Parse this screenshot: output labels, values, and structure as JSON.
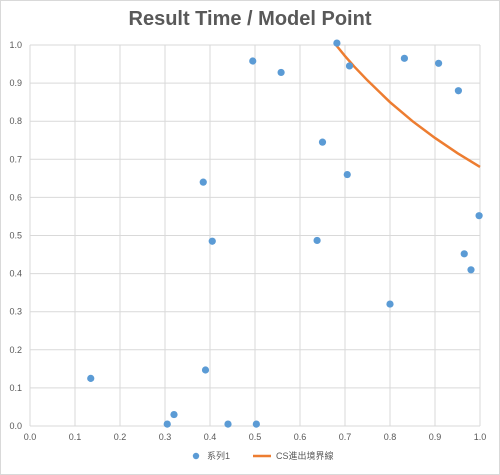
{
  "chart_data": {
    "type": "scatter",
    "title": "Result Time / Model Point",
    "xlabel": "",
    "ylabel": "",
    "xlim": [
      0,
      1
    ],
    "ylim": [
      0,
      1
    ],
    "x_ticks": [
      "0.0",
      "0.1",
      "0.2",
      "0.3",
      "0.4",
      "0.5",
      "0.6",
      "0.7",
      "0.8",
      "0.9",
      "1.0"
    ],
    "y_ticks": [
      "0.0",
      "0.1",
      "0.2",
      "0.3",
      "0.4",
      "0.5",
      "0.6",
      "0.7",
      "0.8",
      "0.9",
      "1.0"
    ],
    "grid": true,
    "legend_position": "bottom",
    "series": [
      {
        "name": "系列1",
        "kind": "scatter",
        "color": "#5B9BD5",
        "points": [
          {
            "x": 0.135,
            "y": 0.125
          },
          {
            "x": 0.305,
            "y": 0.005
          },
          {
            "x": 0.32,
            "y": 0.03
          },
          {
            "x": 0.385,
            "y": 0.64
          },
          {
            "x": 0.39,
            "y": 0.147
          },
          {
            "x": 0.405,
            "y": 0.485
          },
          {
            "x": 0.44,
            "y": 0.005
          },
          {
            "x": 0.495,
            "y": 0.958
          },
          {
            "x": 0.503,
            "y": 0.005
          },
          {
            "x": 0.558,
            "y": 0.928
          },
          {
            "x": 0.638,
            "y": 0.487
          },
          {
            "x": 0.65,
            "y": 0.745
          },
          {
            "x": 0.682,
            "y": 1.005
          },
          {
            "x": 0.705,
            "y": 0.66
          },
          {
            "x": 0.71,
            "y": 0.945
          },
          {
            "x": 0.8,
            "y": 0.32
          },
          {
            "x": 0.832,
            "y": 0.965
          },
          {
            "x": 0.908,
            "y": 0.952
          },
          {
            "x": 0.952,
            "y": 0.88
          },
          {
            "x": 0.965,
            "y": 0.452
          },
          {
            "x": 0.98,
            "y": 0.41
          },
          {
            "x": 0.998,
            "y": 0.552
          }
        ]
      },
      {
        "name": "CS進出境界線",
        "kind": "line",
        "color": "#ED7D31",
        "points": [
          {
            "x": 0.68,
            "y": 1.0
          },
          {
            "x": 0.7,
            "y": 0.971
          },
          {
            "x": 0.72,
            "y": 0.944
          },
          {
            "x": 0.75,
            "y": 0.907
          },
          {
            "x": 0.8,
            "y": 0.85
          },
          {
            "x": 0.85,
            "y": 0.8
          },
          {
            "x": 0.9,
            "y": 0.756
          },
          {
            "x": 0.95,
            "y": 0.716
          },
          {
            "x": 1.0,
            "y": 0.68
          }
        ]
      }
    ]
  }
}
